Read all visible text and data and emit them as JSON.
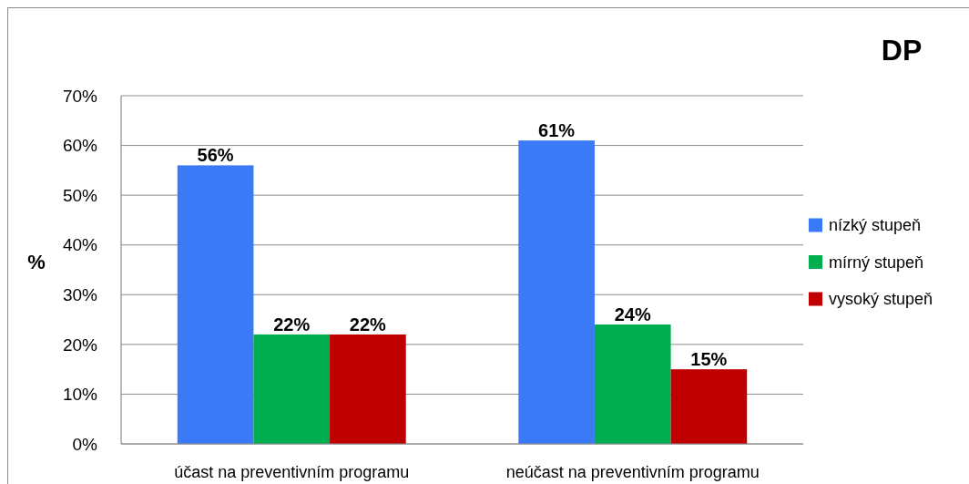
{
  "chart_data": {
    "type": "bar",
    "title": "DP",
    "ylabel": "%",
    "categories": [
      "účast na preventivním programu",
      "neúčast na preventivním programu"
    ],
    "series": [
      {
        "name": "nízký stupeň",
        "color": "#3b7af7",
        "values": [
          56,
          61
        ],
        "value_labels": [
          "56%",
          "61%"
        ]
      },
      {
        "name": "mírný stupeň",
        "color": "#00ad4f",
        "values": [
          22,
          24
        ],
        "value_labels": [
          "22%",
          "24%"
        ]
      },
      {
        "name": "vysoký stupeň",
        "color": "#c00000",
        "values": [
          22,
          15
        ],
        "value_labels": [
          "22%",
          "15%"
        ]
      }
    ],
    "ylim": [
      0,
      70
    ],
    "yticks": [
      {
        "value": 0,
        "label": "0%"
      },
      {
        "value": 10,
        "label": "10%"
      },
      {
        "value": 20,
        "label": "20%"
      },
      {
        "value": 30,
        "label": "30%"
      },
      {
        "value": 40,
        "label": "40%"
      },
      {
        "value": 50,
        "label": "50%"
      },
      {
        "value": 60,
        "label": "60%"
      },
      {
        "value": 70,
        "label": "70%"
      }
    ],
    "grid": "y",
    "legend": "right"
  }
}
